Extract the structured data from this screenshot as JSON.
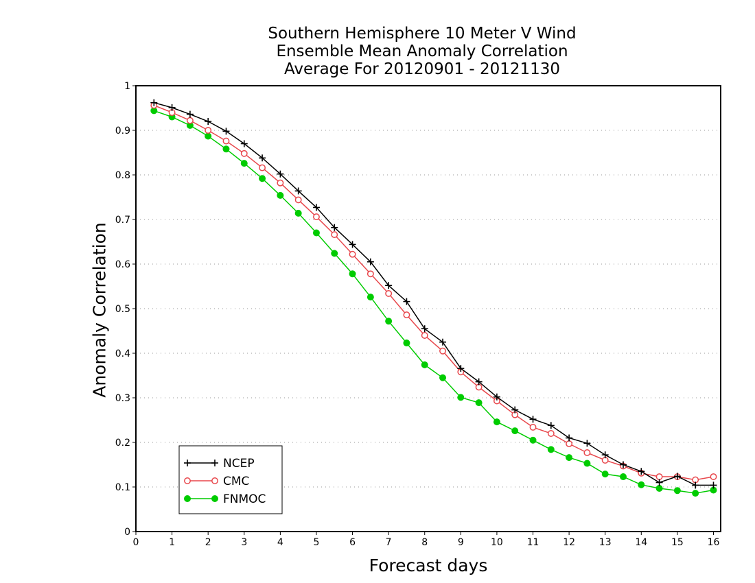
{
  "chart_data": {
    "type": "line",
    "title_lines": [
      "Southern Hemisphere 10 Meter V Wind",
      "Ensemble Mean Anomaly Correlation",
      "Average For 20120901 - 20121130"
    ],
    "xlabel": "Forecast days",
    "ylabel": "Anomaly Correlation",
    "xlim": [
      0,
      16.2
    ],
    "ylim": [
      0,
      1
    ],
    "x_ticks": [
      0,
      1,
      2,
      3,
      4,
      5,
      6,
      7,
      8,
      9,
      10,
      11,
      12,
      13,
      14,
      15,
      16
    ],
    "y_ticks": [
      0,
      0.1,
      0.2,
      0.3,
      0.4,
      0.5,
      0.6,
      0.7,
      0.8,
      0.9,
      1
    ],
    "grid": "horizontal-dotted",
    "legend_position": "bottom-left",
    "x": [
      0.5,
      1,
      1.5,
      2,
      2.5,
      3,
      3.5,
      4,
      4.5,
      5,
      5.5,
      6,
      6.5,
      7,
      7.5,
      8,
      8.5,
      9,
      9.5,
      10,
      10.5,
      11,
      11.5,
      12,
      12.5,
      13,
      13.5,
      14,
      14.5,
      15,
      15.5,
      16
    ],
    "series": [
      {
        "name": "NCEP",
        "color": "#000000",
        "marker": "plus",
        "values": [
          0.962,
          0.951,
          0.936,
          0.92,
          0.898,
          0.87,
          0.838,
          0.802,
          0.764,
          0.727,
          0.682,
          0.644,
          0.605,
          0.552,
          0.516,
          0.455,
          0.425,
          0.366,
          0.336,
          0.302,
          0.273,
          0.252,
          0.238,
          0.21,
          0.198,
          0.172,
          0.15,
          0.135,
          0.11,
          0.124,
          0.104,
          0.104
        ]
      },
      {
        "name": "CMC",
        "color": "#e8474c",
        "marker": "open-circle",
        "values": [
          0.956,
          0.94,
          0.922,
          0.9,
          0.876,
          0.848,
          0.816,
          0.782,
          0.744,
          0.706,
          0.666,
          0.622,
          0.578,
          0.534,
          0.486,
          0.44,
          0.405,
          0.358,
          0.324,
          0.293,
          0.262,
          0.234,
          0.22,
          0.197,
          0.177,
          0.16,
          0.147,
          0.131,
          0.123,
          0.123,
          0.116,
          0.123
        ]
      },
      {
        "name": "FNMOC",
        "color": "#00cc00",
        "marker": "filled-circle",
        "values": [
          0.944,
          0.93,
          0.911,
          0.887,
          0.858,
          0.826,
          0.792,
          0.754,
          0.714,
          0.67,
          0.624,
          0.578,
          0.526,
          0.472,
          0.423,
          0.374,
          0.345,
          0.301,
          0.289,
          0.246,
          0.226,
          0.205,
          0.184,
          0.166,
          0.153,
          0.129,
          0.123,
          0.105,
          0.097,
          0.092,
          0.086,
          0.093
        ]
      }
    ]
  }
}
